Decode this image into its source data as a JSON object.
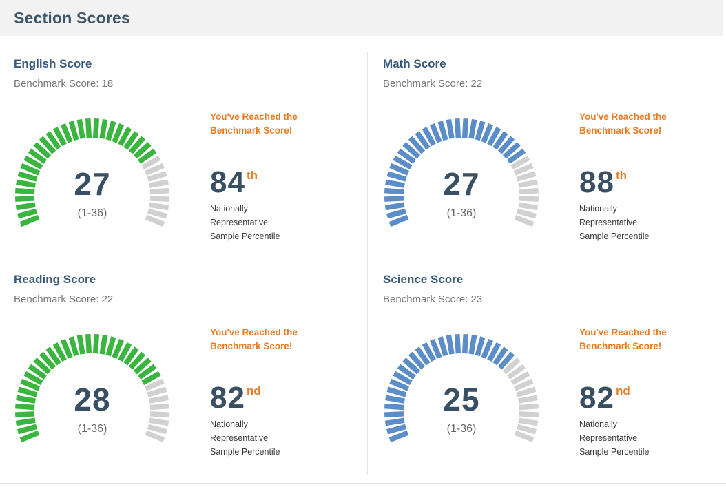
{
  "page": {
    "title": "Section Scores"
  },
  "colors": {
    "green": "#3ab53f",
    "blue": "#5b8dc8",
    "unfilled": "#d1d1d1",
    "orange": "#e87d26",
    "slate": "#394f63",
    "header_bg": "#f2f2f2"
  },
  "gauge": {
    "total_ticks": 36,
    "min": 1,
    "max": 36,
    "start_angle_deg": 205,
    "sweep_deg": 230
  },
  "sections": [
    {
      "id": "english",
      "title": "English Score",
      "benchmark_label": "Benchmark Score: 18",
      "score": "27",
      "score_value": 27,
      "range_label": "(1-36)",
      "color": "#3ab53f",
      "message": "You've Reached the Benchmark Score!",
      "percentile": "84",
      "ordinal": "th",
      "caption_lines": [
        "Nationally",
        "Representative",
        "Sample Percentile"
      ]
    },
    {
      "id": "math",
      "title": "Math Score",
      "benchmark_label": "Benchmark Score: 22",
      "score": "27",
      "score_value": 27,
      "range_label": "(1-36)",
      "color": "#5b8dc8",
      "message": "You've Reached the Benchmark Score!",
      "percentile": "88",
      "ordinal": "th",
      "caption_lines": [
        "Nationally",
        "Representative",
        "Sample Percentile"
      ]
    },
    {
      "id": "reading",
      "title": "Reading Score",
      "benchmark_label": "Benchmark Score: 22",
      "score": "28",
      "score_value": 28,
      "range_label": "(1-36)",
      "color": "#3ab53f",
      "message": "You've Reached the Benchmark Score!",
      "percentile": "82",
      "ordinal": "nd",
      "caption_lines": [
        "Nationally",
        "Representative",
        "Sample Percentile"
      ]
    },
    {
      "id": "science",
      "title": "Science Score",
      "benchmark_label": "Benchmark Score: 23",
      "score": "25",
      "score_value": 25,
      "range_label": "(1-36)",
      "color": "#5b8dc8",
      "message": "You've Reached the Benchmark Score!",
      "percentile": "82",
      "ordinal": "nd",
      "caption_lines": [
        "Nationally",
        "Representative",
        "Sample Percentile"
      ]
    }
  ],
  "chart_data": [
    {
      "type": "gauge",
      "title": "English Score",
      "value": 27,
      "min": 1,
      "max": 36,
      "benchmark": 18,
      "percentile": 84,
      "percentile_ordinal": "th",
      "color": "#3ab53f",
      "ticks": 36
    },
    {
      "type": "gauge",
      "title": "Math Score",
      "value": 27,
      "min": 1,
      "max": 36,
      "benchmark": 22,
      "percentile": 88,
      "percentile_ordinal": "th",
      "color": "#5b8dc8",
      "ticks": 36
    },
    {
      "type": "gauge",
      "title": "Reading Score",
      "value": 28,
      "min": 1,
      "max": 36,
      "benchmark": 22,
      "percentile": 82,
      "percentile_ordinal": "nd",
      "color": "#3ab53f",
      "ticks": 36
    },
    {
      "type": "gauge",
      "title": "Science Score",
      "value": 25,
      "min": 1,
      "max": 36,
      "benchmark": 23,
      "percentile": 82,
      "percentile_ordinal": "nd",
      "color": "#5b8dc8",
      "ticks": 36
    }
  ]
}
